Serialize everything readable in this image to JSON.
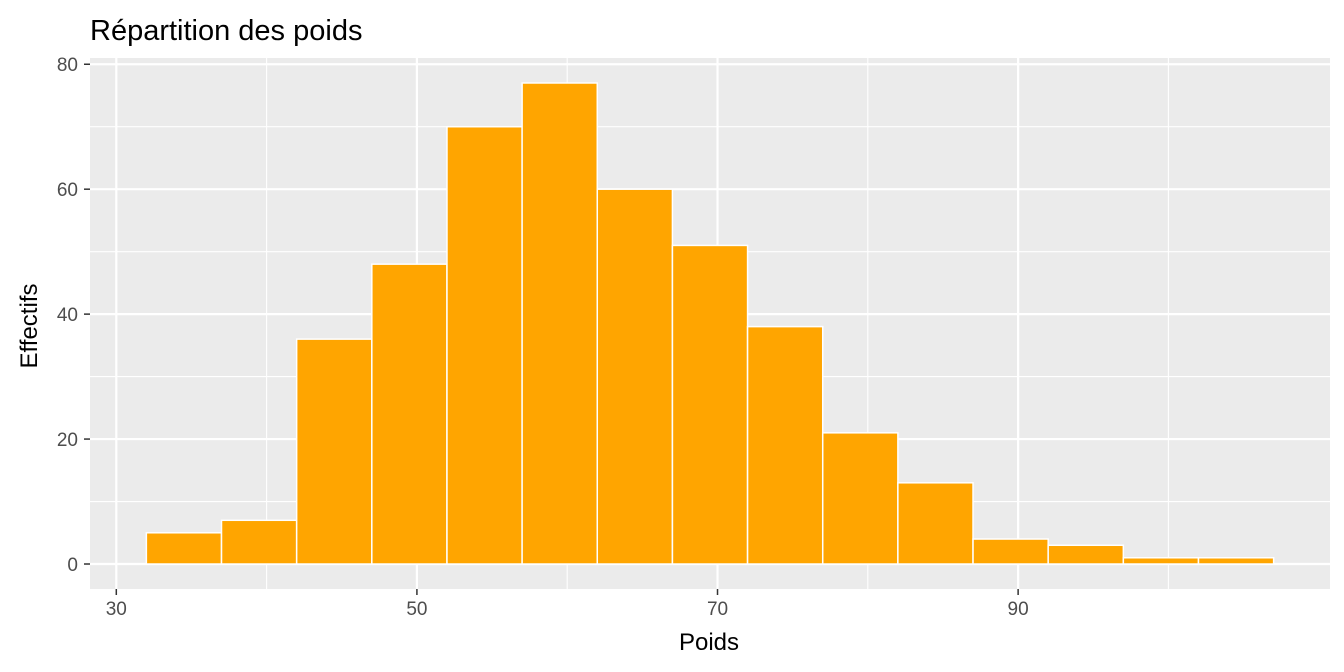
{
  "chart_data": {
    "type": "bar",
    "subtype": "histogram",
    "title": "Répartition des poids",
    "xlabel": "Poids",
    "ylabel": "Effectifs",
    "bin_width": 5,
    "bins": [
      {
        "x0": 32,
        "x1": 37,
        "count": 5
      },
      {
        "x0": 37,
        "x1": 42,
        "count": 7
      },
      {
        "x0": 42,
        "x1": 47,
        "count": 36
      },
      {
        "x0": 47,
        "x1": 52,
        "count": 48
      },
      {
        "x0": 52,
        "x1": 57,
        "count": 70
      },
      {
        "x0": 57,
        "x1": 62,
        "count": 77
      },
      {
        "x0": 62,
        "x1": 67,
        "count": 60
      },
      {
        "x0": 67,
        "x1": 72,
        "count": 51
      },
      {
        "x0": 72,
        "x1": 77,
        "count": 38
      },
      {
        "x0": 77,
        "x1": 82,
        "count": 21
      },
      {
        "x0": 82,
        "x1": 87,
        "count": 13
      },
      {
        "x0": 87,
        "x1": 92,
        "count": 4
      },
      {
        "x0": 92,
        "x1": 97,
        "count": 3
      },
      {
        "x0": 97,
        "x1": 102,
        "count": 1
      },
      {
        "x0": 102,
        "x1": 107,
        "count": 1
      }
    ],
    "xlim": [
      28.25,
      110.75
    ],
    "ylim": [
      -4,
      81
    ],
    "x_ticks": [
      30,
      50,
      70,
      90
    ],
    "x_minor_ticks": [
      40,
      60,
      80,
      100
    ],
    "y_ticks": [
      0,
      20,
      40,
      60,
      80
    ],
    "y_minor_ticks": [
      10,
      30,
      50,
      70
    ],
    "grid": true,
    "legend": "none",
    "colors": {
      "bar_fill": "#FFA500",
      "bar_stroke": "#FFFFFF",
      "panel_background": "#EBEBEB",
      "grid_line": "#FFFFFF",
      "tick_label": "#4D4D4D",
      "tick_mark": "#333333"
    }
  }
}
